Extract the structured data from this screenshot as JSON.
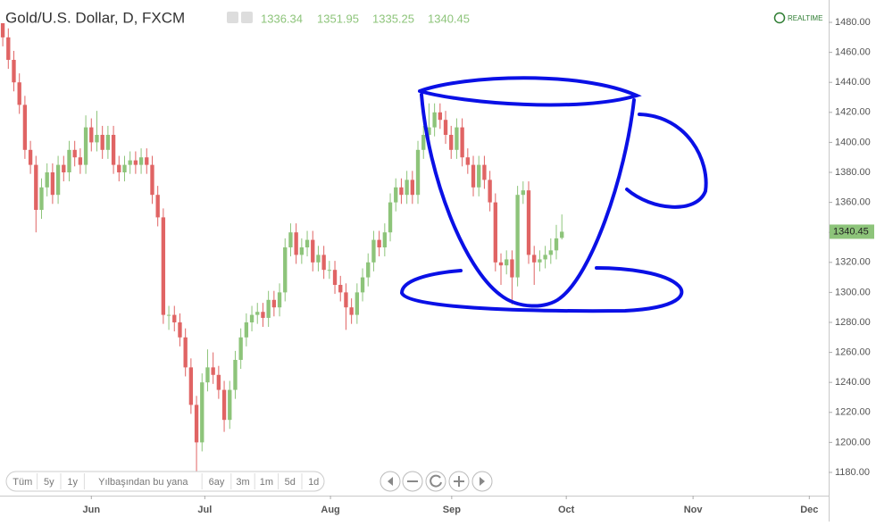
{
  "chart_data": {
    "type": "candlestick",
    "title": "Gold/U.S. Dollar, D, FXCM",
    "header": {
      "open": 1336.34,
      "high": 1351.95,
      "low": 1335.25,
      "close": 1340.45
    },
    "realtime_label": "REALTIME",
    "last_price": {
      "value": 1340.45,
      "label": "1340.45"
    },
    "up_color": "#8dc47a",
    "down_color": "#e06464",
    "x": [
      0,
      1,
      2,
      3,
      4,
      5,
      6,
      7,
      8,
      9,
      10,
      11,
      12,
      13,
      14,
      15,
      16,
      17,
      18,
      19,
      20,
      21,
      22,
      23,
      24,
      25,
      26,
      27,
      28,
      29,
      30,
      31,
      32,
      33,
      34,
      35,
      36,
      37,
      38,
      39,
      40,
      41,
      42,
      43,
      44,
      45,
      46,
      47,
      48,
      49,
      50,
      51,
      52,
      53,
      54,
      55,
      56,
      57,
      58,
      59,
      60,
      61,
      62,
      63,
      64,
      65,
      66,
      67,
      68,
      69,
      70,
      71,
      72,
      73,
      74,
      75,
      76,
      77,
      78,
      79,
      80,
      81,
      82,
      83,
      84,
      85,
      86,
      87,
      88,
      89,
      90,
      91,
      92,
      93,
      94,
      95,
      96,
      97,
      98,
      99,
      100,
      101
    ],
    "open": [
      1480,
      1470,
      1455,
      1440,
      1425,
      1395,
      1385,
      1355,
      1370,
      1380,
      1365,
      1385,
      1380,
      1395,
      1390,
      1385,
      1410,
      1400,
      1405,
      1395,
      1405,
      1385,
      1380,
      1385,
      1388,
      1385,
      1390,
      1385,
      1365,
      1350,
      1285,
      1285,
      1280,
      1270,
      1250,
      1225,
      1200,
      1240,
      1250,
      1245,
      1235,
      1215,
      1235,
      1255,
      1270,
      1280,
      1285,
      1287,
      1283,
      1295,
      1290,
      1300,
      1330,
      1340,
      1325,
      1330,
      1335,
      1320,
      1325,
      1315,
      1315,
      1305,
      1300,
      1290,
      1285,
      1300,
      1310,
      1320,
      1335,
      1330,
      1340,
      1360,
      1370,
      1365,
      1375,
      1365,
      1395,
      1405,
      1410,
      1420,
      1415,
      1405,
      1395,
      1410,
      1390,
      1385,
      1370,
      1385,
      1375,
      1360,
      1320,
      1318,
      1322,
      1310,
      1365,
      1368,
      1325,
      1320,
      1322,
      1325,
      1328,
      1336.34
    ],
    "high": [
      1484,
      1476,
      1461,
      1446,
      1431,
      1401,
      1391,
      1376,
      1386,
      1386,
      1391,
      1391,
      1401,
      1401,
      1396,
      1418,
      1416,
      1421,
      1411,
      1411,
      1411,
      1391,
      1391,
      1394,
      1394,
      1396,
      1396,
      1391,
      1371,
      1356,
      1291,
      1291,
      1286,
      1276,
      1256,
      1231,
      1246,
      1262,
      1260,
      1251,
      1241,
      1241,
      1261,
      1276,
      1286,
      1291,
      1293,
      1293,
      1301,
      1301,
      1306,
      1336,
      1346,
      1346,
      1336,
      1341,
      1341,
      1331,
      1331,
      1321,
      1321,
      1311,
      1306,
      1296,
      1306,
      1316,
      1326,
      1341,
      1341,
      1346,
      1366,
      1376,
      1376,
      1381,
      1381,
      1401,
      1411,
      1426,
      1426,
      1426,
      1421,
      1411,
      1416,
      1416,
      1396,
      1391,
      1391,
      1391,
      1381,
      1366,
      1326,
      1328,
      1328,
      1371,
      1374,
      1374,
      1331,
      1328,
      1331,
      1336,
      1345,
      1351.95
    ],
    "low": [
      1464,
      1449,
      1434,
      1419,
      1389,
      1379,
      1340,
      1349,
      1364,
      1359,
      1359,
      1374,
      1374,
      1384,
      1379,
      1379,
      1394,
      1394,
      1389,
      1389,
      1379,
      1374,
      1374,
      1379,
      1379,
      1379,
      1379,
      1359,
      1344,
      1279,
      1275,
      1274,
      1264,
      1244,
      1219,
      1180,
      1194,
      1234,
      1239,
      1229,
      1207,
      1209,
      1229,
      1249,
      1264,
      1274,
      1279,
      1277,
      1277,
      1284,
      1284,
      1294,
      1324,
      1319,
      1319,
      1324,
      1314,
      1314,
      1309,
      1309,
      1299,
      1294,
      1275,
      1279,
      1279,
      1294,
      1304,
      1314,
      1324,
      1324,
      1334,
      1354,
      1359,
      1359,
      1359,
      1359,
      1389,
      1399,
      1404,
      1409,
      1399,
      1389,
      1389,
      1384,
      1379,
      1364,
      1364,
      1369,
      1354,
      1314,
      1305,
      1312,
      1292,
      1304,
      1359,
      1319,
      1305,
      1314,
      1316,
      1319,
      1322,
      1335.25
    ],
    "close": [
      1470,
      1455,
      1440,
      1425,
      1395,
      1385,
      1355,
      1370,
      1380,
      1365,
      1385,
      1380,
      1395,
      1390,
      1385,
      1410,
      1400,
      1405,
      1395,
      1405,
      1385,
      1380,
      1385,
      1388,
      1385,
      1390,
      1385,
      1365,
      1350,
      1285,
      1285,
      1280,
      1270,
      1250,
      1225,
      1200,
      1240,
      1250,
      1245,
      1235,
      1215,
      1235,
      1255,
      1270,
      1280,
      1285,
      1287,
      1283,
      1295,
      1290,
      1300,
      1330,
      1340,
      1325,
      1330,
      1335,
      1320,
      1325,
      1315,
      1315,
      1305,
      1300,
      1290,
      1285,
      1300,
      1310,
      1320,
      1335,
      1330,
      1340,
      1360,
      1370,
      1365,
      1375,
      1365,
      1395,
      1405,
      1410,
      1420,
      1415,
      1405,
      1395,
      1410,
      1390,
      1385,
      1370,
      1385,
      1375,
      1360,
      1320,
      1318,
      1322,
      1310,
      1365,
      1368,
      1325,
      1320,
      1322,
      1325,
      1328,
      1336,
      1340.45
    ],
    "xlim": [
      -0.5,
      149.2
    ],
    "xticks": [
      {
        "value": 16,
        "label": "Jun"
      },
      {
        "value": 36.5,
        "label": "Jul"
      },
      {
        "value": 59.2,
        "label": "Aug"
      },
      {
        "value": 81.1,
        "label": "Sep"
      },
      {
        "value": 101.8,
        "label": "Oct"
      },
      {
        "value": 124.7,
        "label": "Nov"
      },
      {
        "value": 145.7,
        "label": "Dec"
      }
    ],
    "ylim": [
      1164.5,
      1494.9
    ],
    "yticks": [
      {
        "value": 1180,
        "label": "1180.00"
      },
      {
        "value": 1200,
        "label": "1200.00"
      },
      {
        "value": 1220,
        "label": "1220.00"
      },
      {
        "value": 1240,
        "label": "1240.00"
      },
      {
        "value": 1260,
        "label": "1260.00"
      },
      {
        "value": 1280,
        "label": "1280.00"
      },
      {
        "value": 1300,
        "label": "1300.00"
      },
      {
        "value": 1320,
        "label": "1320.00"
      },
      {
        "value": 1340,
        "label": "1340.00"
      },
      {
        "value": 1360,
        "label": "1360.00"
      },
      {
        "value": 1380,
        "label": "1380.00"
      },
      {
        "value": 1400,
        "label": "1400.00"
      },
      {
        "value": 1420,
        "label": "1420.00"
      },
      {
        "value": 1440,
        "label": "1440.00"
      },
      {
        "value": 1460,
        "label": "1460.00"
      },
      {
        "value": 1480,
        "label": "1480.00"
      }
    ],
    "range_buttons": [
      "Tüm",
      "5y",
      "1y",
      "Yılbaşından bu yana",
      "6ay",
      "3m",
      "1m",
      "5d",
      "1d"
    ]
  }
}
